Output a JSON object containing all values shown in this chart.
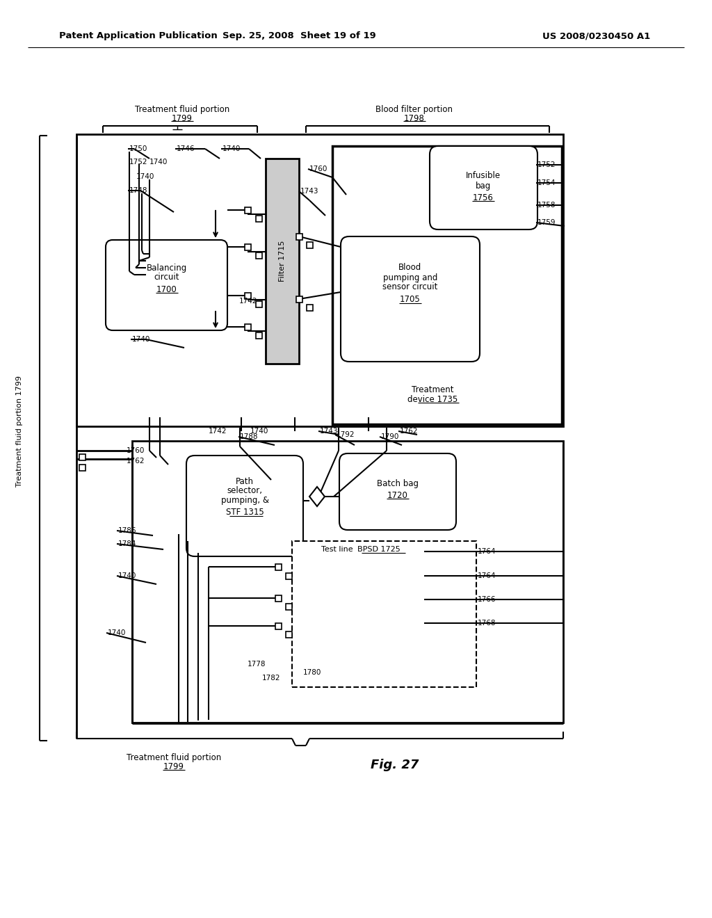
{
  "bg": "#ffffff",
  "header_left": "Patent Application Publication",
  "header_mid": "Sep. 25, 2008  Sheet 19 of 19",
  "header_right": "US 2008/0230450 A1"
}
